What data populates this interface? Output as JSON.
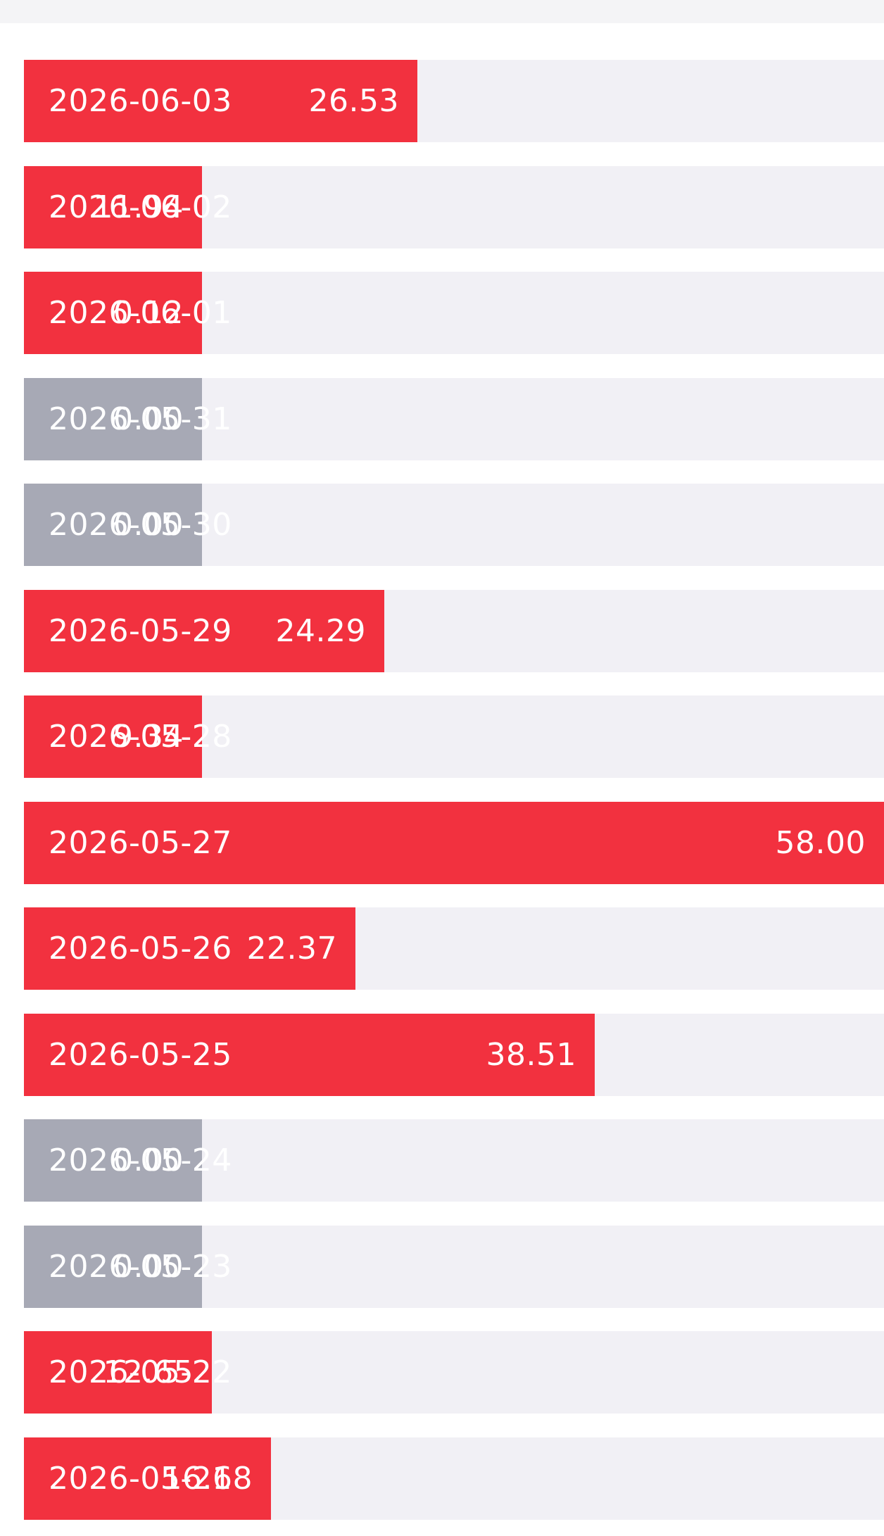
{
  "colors": {
    "positive": "#f2313f",
    "zero": "#a7a9b5",
    "track": "#f1f0f5",
    "label": "#ffffff"
  },
  "chart_data": {
    "type": "bar",
    "orientation": "horizontal",
    "title": "",
    "xlabel": "",
    "ylabel": "",
    "xlim": [
      0,
      58.0
    ],
    "min_visible_value": 12.0,
    "grid": false,
    "legend": "none",
    "categories": [
      "2026-06-03",
      "2026-06-02",
      "2026-06-01",
      "2026-05-31",
      "2026-05-30",
      "2026-05-29",
      "2026-05-28",
      "2026-05-27",
      "2026-05-26",
      "2026-05-25",
      "2026-05-24",
      "2026-05-23",
      "2026-05-22",
      "2026-05-21"
    ],
    "values": [
      26.53,
      11.94,
      0.12,
      0.0,
      0.0,
      24.29,
      9.34,
      58.0,
      22.37,
      38.51,
      0.0,
      0.0,
      12.65,
      16.68
    ],
    "value_labels": [
      "26.53",
      "11.94",
      "0.12",
      "0.00",
      "0.00",
      "24.29",
      "9.34",
      "58.00",
      "22.37",
      "38.51",
      "0.00",
      "0.00",
      "12.65",
      "16.68"
    ]
  }
}
